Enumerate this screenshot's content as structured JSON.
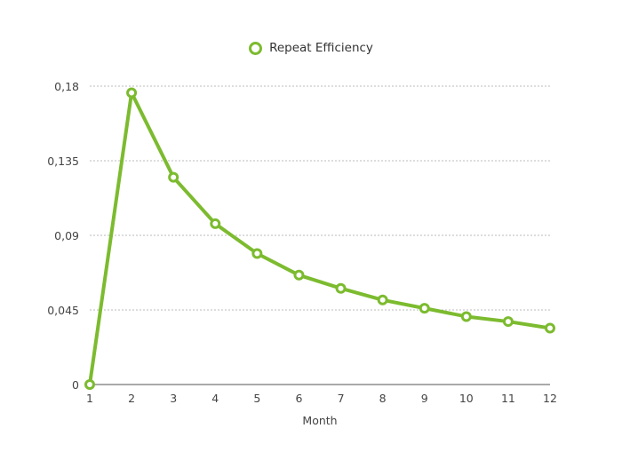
{
  "chart_data": {
    "type": "line",
    "title": "",
    "xlabel": "Month",
    "ylabel": "",
    "x": [
      1,
      2,
      3,
      4,
      5,
      6,
      7,
      8,
      9,
      10,
      11,
      12
    ],
    "categories": [
      "1",
      "2",
      "3",
      "4",
      "5",
      "6",
      "7",
      "8",
      "9",
      "10",
      "11",
      "12"
    ],
    "series": [
      {
        "name": "Repeat Efficiency",
        "color": "#7cbb2f",
        "values": [
          0,
          0.176,
          0.125,
          0.097,
          0.079,
          0.066,
          0.058,
          0.051,
          0.046,
          0.041,
          0.038,
          0.034
        ]
      }
    ],
    "ylim": [
      0,
      0.18
    ],
    "yticks": [
      0,
      0.045,
      0.09,
      0.135,
      0.18
    ],
    "ytick_labels": [
      "0",
      "0,045",
      "0,09",
      "0,135",
      "0,18"
    ],
    "grid": true,
    "grid_style": "dotted horizontal",
    "legend_position": "top-center",
    "marker": "hollow-circle"
  },
  "legend": {
    "label": "Repeat Efficiency"
  },
  "axes": {
    "xlabel": "Month"
  },
  "colors": {
    "series": "#7cbb2f",
    "grid": "#bbbbbb",
    "axis": "#555555",
    "text": "#444444"
  }
}
